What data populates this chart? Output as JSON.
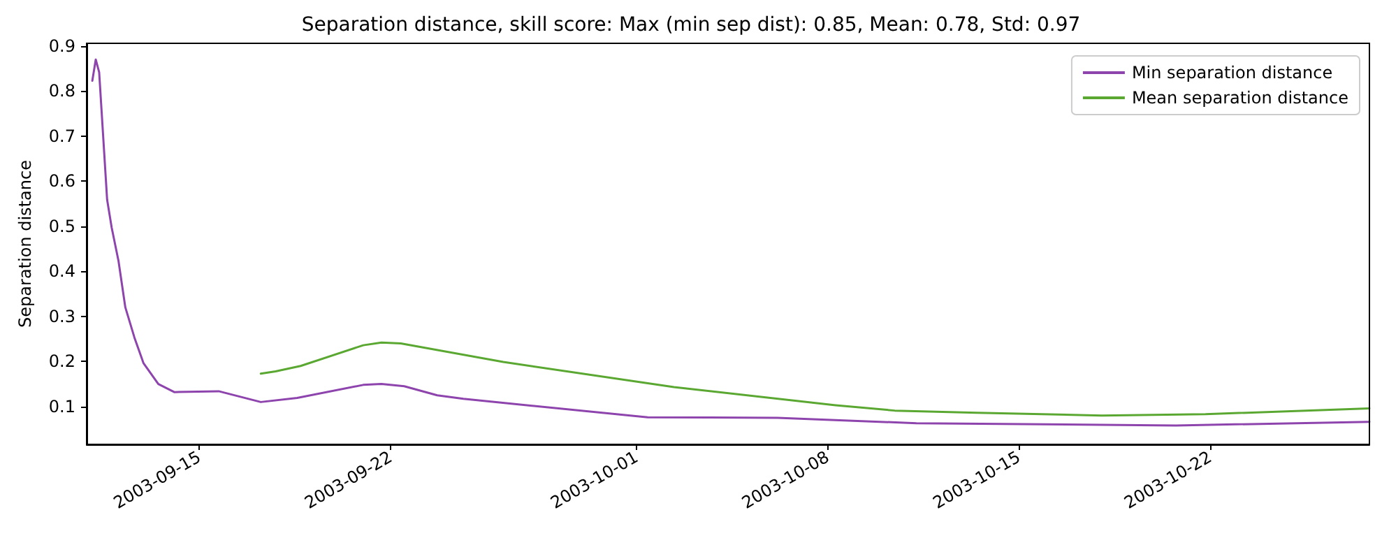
{
  "chart_data": {
    "type": "line",
    "title": "Separation distance, skill score: Max (min sep dist): 0.85, Mean: 0.78, Std: 0.97",
    "ylabel": "Separation distance",
    "xlim": [
      "2003-09-10T21:00",
      "2003-10-27T20:00"
    ],
    "xticks": [
      "2003-09-15",
      "2003-09-22",
      "2003-10-01",
      "2003-10-08",
      "2003-10-15",
      "2003-10-22"
    ],
    "ylim": [
      0.016,
      0.906
    ],
    "yticks": [
      0.1,
      0.2,
      0.3,
      0.4,
      0.5,
      0.6,
      0.7,
      0.8,
      0.9
    ],
    "grid": false,
    "legend": "top right",
    "marker": "none",
    "line_style": "solid",
    "series": [
      {
        "name": "Min separation distance",
        "color": "#8e44ad",
        "x": [
          "2003-09-11T02:00",
          "2003-09-11T05:00",
          "2003-09-11T08:00",
          "2003-09-11T15:00",
          "2003-09-11T19:00",
          "2003-09-12T01:00",
          "2003-09-12T07:00",
          "2003-09-12T15:00",
          "2003-09-12T23:00",
          "2003-09-13T12:00",
          "2003-09-14T02:00",
          "2003-09-15T17:00",
          "2003-09-17T06:00",
          "2003-09-18T14:00",
          "2003-09-21T00:00",
          "2003-09-21T16:00",
          "2003-09-22T12:00",
          "2003-09-23T17:00",
          "2003-09-24T16:00",
          "2003-10-01T10:00",
          "2003-10-06T04:00",
          "2003-10-11T06:00",
          "2003-10-20T18:00",
          "2003-10-27T20:00"
        ],
        "values": [
          0.823,
          0.87,
          0.842,
          0.559,
          0.497,
          0.423,
          0.32,
          0.253,
          0.196,
          0.15,
          0.132,
          0.134,
          0.11,
          0.119,
          0.148,
          0.15,
          0.145,
          0.125,
          0.117,
          0.076,
          0.075,
          0.063,
          0.058,
          0.066
        ]
      },
      {
        "name": "Mean separation distance",
        "color": "#5aa832",
        "x": [
          "2003-09-17T06:00",
          "2003-09-17T19:00",
          "2003-09-18T17:00",
          "2003-09-21T00:00",
          "2003-09-21T16:00",
          "2003-09-22T09:00",
          "2003-09-26T03:00",
          "2003-10-02T09:00",
          "2003-10-08T07:00",
          "2003-10-10T11:00",
          "2003-10-13T11:00",
          "2003-10-18T01:00",
          "2003-10-21T20:00",
          "2003-10-27T20:00"
        ],
        "values": [
          0.173,
          0.178,
          0.19,
          0.236,
          0.242,
          0.24,
          0.199,
          0.143,
          0.103,
          0.091,
          0.086,
          0.08,
          0.083,
          0.096
        ]
      }
    ]
  }
}
